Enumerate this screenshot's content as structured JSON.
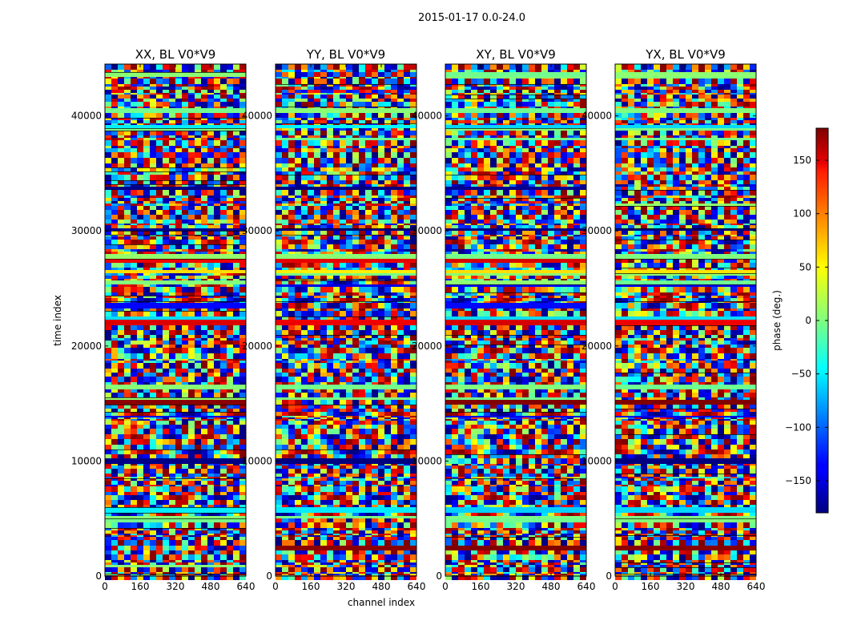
{
  "chart_data": {
    "type": "heatmap",
    "suptitle": "2015-01-17 0.0-24.0",
    "xlabel": "channel index",
    "ylabel": "time index",
    "xlim": [
      0,
      640
    ],
    "ylim": [
      0,
      44500
    ],
    "xticks": [
      0,
      160,
      320,
      480,
      640
    ],
    "yticks": [
      0,
      10000,
      20000,
      30000,
      40000
    ],
    "panels": [
      {
        "title": "XX, BL V0*V9"
      },
      {
        "title": "YY, BL V0*V9"
      },
      {
        "title": "XY, BL V0*V9"
      },
      {
        "title": "YX, BL V0*V9"
      }
    ],
    "colorbar": {
      "label": "phase (deg.)",
      "range": [
        -180,
        180
      ],
      "ticks": [
        -150,
        -100,
        -50,
        0,
        50,
        100,
        150
      ],
      "tick_labels": [
        "−150",
        "−100",
        "−50",
        "0",
        "50",
        "100",
        "150"
      ],
      "colormap": "jet"
    }
  }
}
